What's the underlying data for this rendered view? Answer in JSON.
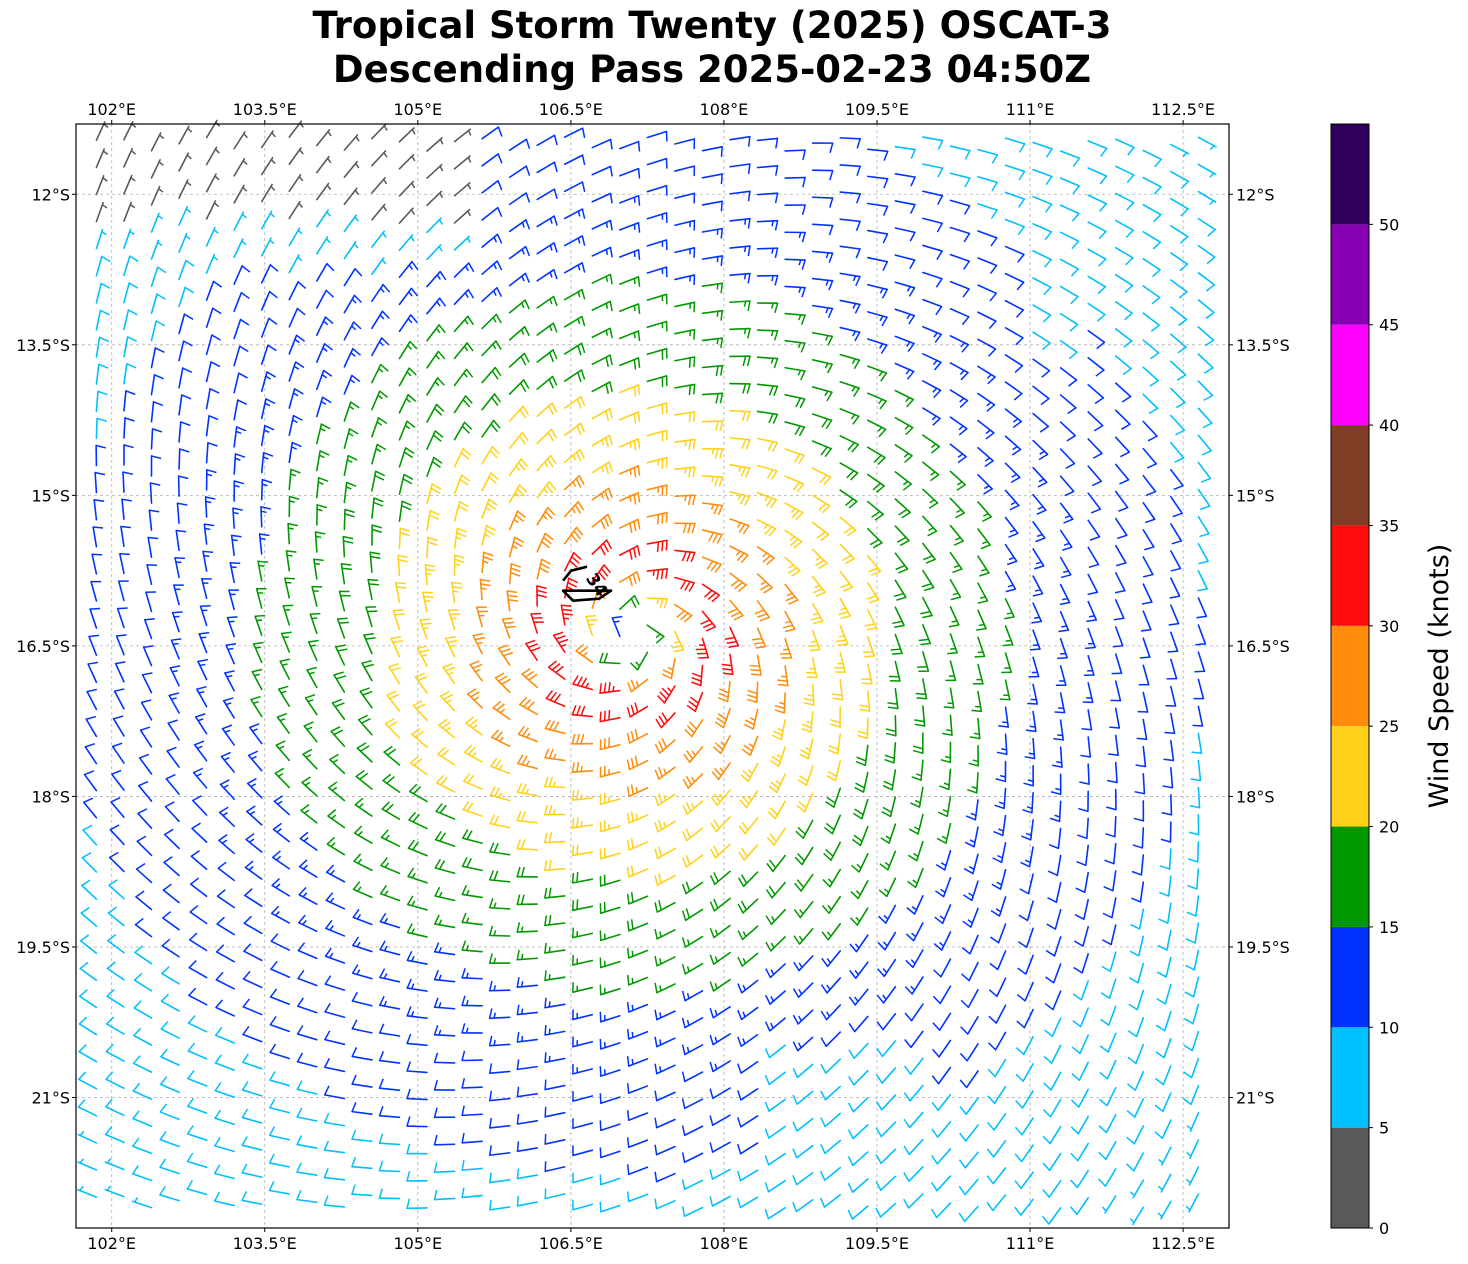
{
  "chart_data": {
    "type": "scatter",
    "marker": "wind-barb",
    "title": "Tropical Storm Twenty (2025) OSCAT-3",
    "subtitle": "Descending Pass 2025-02-23 04:50Z",
    "x_ticks": [
      "102°E",
      "103.5°E",
      "105°E",
      "106.5°E",
      "108°E",
      "109.5°E",
      "111°E",
      "112.5°E"
    ],
    "x_tick_values": [
      102,
      103.5,
      105,
      106.5,
      108,
      109.5,
      111,
      112.5
    ],
    "y_ticks": [
      "12°S",
      "13.5°S",
      "15°S",
      "16.5°S",
      "18°S",
      "19.5°S",
      "21°S"
    ],
    "y_tick_values": [
      -12,
      -13.5,
      -15,
      -16.5,
      -18,
      -19.5,
      -21
    ],
    "xlim": [
      101.65,
      112.95
    ],
    "ylim": [
      -22.3,
      -11.3
    ],
    "grid": true,
    "storm_center": {
      "lon": 107.1,
      "lat": -16.4
    },
    "contour": {
      "label": "34",
      "value_knots": 34,
      "center_lon": 106.6,
      "center_lat": -15.95
    },
    "colorbar": {
      "label": "Wind Speed (knots)",
      "ticks": [
        "0",
        "5",
        "10",
        "15",
        "20",
        "25",
        "30",
        "35",
        "40",
        "45",
        "50"
      ],
      "bounds": [
        0,
        5,
        10,
        15,
        20,
        25,
        30,
        35,
        40,
        45,
        50,
        55
      ],
      "colors": [
        "#595959",
        "#00bfff",
        "#0033ff",
        "#009900",
        "#ffd11a",
        "#ff8c0a",
        "#ff0d0d",
        "#803e27",
        "#ff00ff",
        "#8800b3",
        "#2e005c"
      ]
    }
  }
}
